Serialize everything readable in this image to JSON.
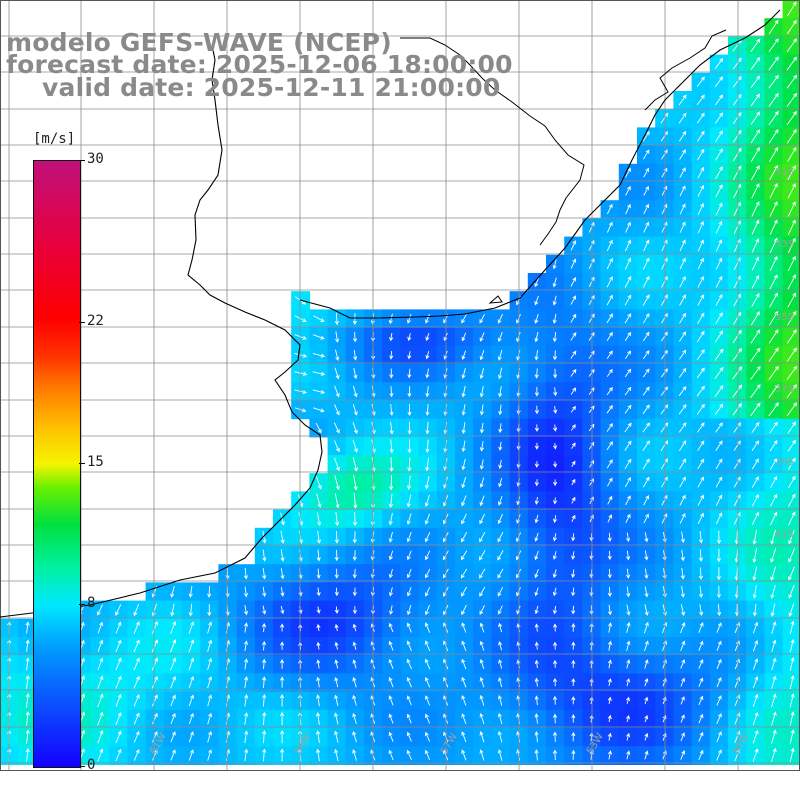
{
  "title": {
    "line1": "modelo GEFS-WAVE (NCEP)",
    "line2": "forecast date: 2025-12-06 18:00:00",
    "line3": "valid date: 2025-12-11 21:00:00"
  },
  "colorbar": {
    "units": "[m/s]",
    "min": 0,
    "max": 30,
    "ticks": [
      {
        "value": 30,
        "label": "30"
      },
      {
        "value": 22,
        "label": "22"
      },
      {
        "value": 15,
        "label": "15"
      },
      {
        "value": 8,
        "label": "8"
      },
      {
        "value": 0,
        "label": "0"
      }
    ]
  },
  "map": {
    "field": "wind speed with wind direction arrows",
    "grid": true,
    "lat_labels": [
      "31S",
      "33S",
      "35S",
      "37S",
      "39S",
      "41S"
    ],
    "lon_labels": [
      "61W",
      "59W",
      "57W",
      "53W",
      "51W"
    ],
    "colors": {
      "land": "#ffffff",
      "grid": "#8c8c8c",
      "coast": "#000000",
      "arrows": "#ffffff"
    }
  }
}
